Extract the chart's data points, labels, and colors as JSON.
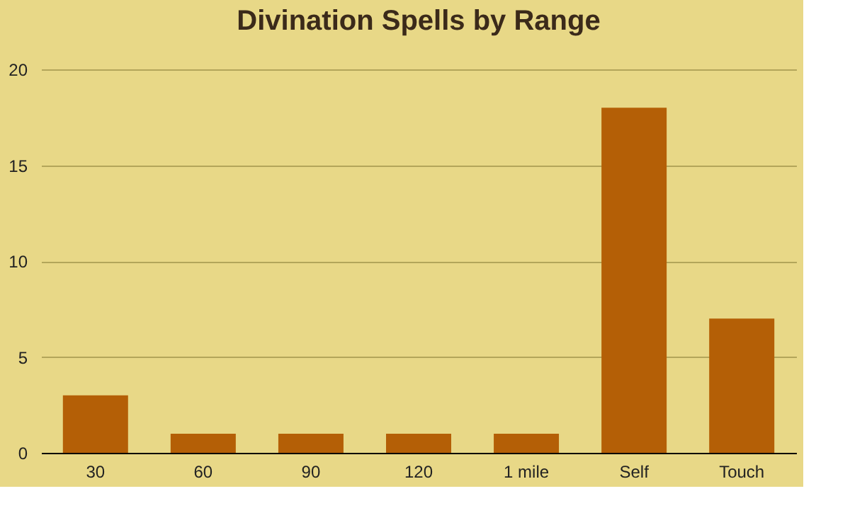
{
  "chart_data": {
    "type": "bar",
    "title": "Divination Spells by Range",
    "categories": [
      "30",
      "60",
      "90",
      "120",
      "1 mile",
      "Self",
      "Touch"
    ],
    "values": [
      3,
      1,
      1,
      1,
      1,
      18,
      7
    ],
    "color": "#b45f06",
    "ylim": [
      0,
      20
    ],
    "yticks": [
      0,
      5,
      10,
      15,
      20
    ],
    "grid": "y"
  }
}
